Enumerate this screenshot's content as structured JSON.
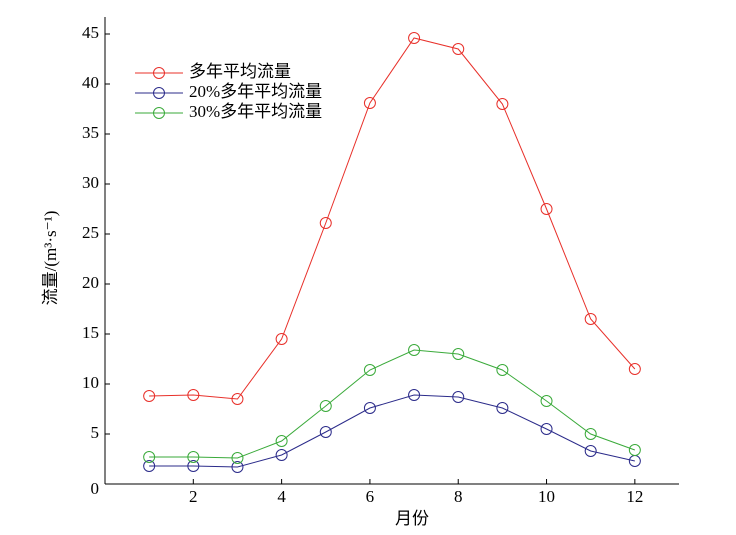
{
  "chart_data": {
    "type": "line",
    "x": [
      1,
      2,
      3,
      4,
      5,
      6,
      7,
      8,
      9,
      10,
      11,
      12
    ],
    "series": [
      {
        "name": "多年平均流量",
        "color": "#e8302a",
        "values": [
          8.8,
          8.9,
          8.5,
          14.5,
          26.1,
          38.1,
          44.6,
          43.5,
          38.0,
          27.5,
          16.5,
          11.5
        ]
      },
      {
        "name": "20%多年平均流量",
        "color": "#2b2b8a",
        "values": [
          1.8,
          1.8,
          1.7,
          2.9,
          5.2,
          7.6,
          8.9,
          8.7,
          7.6,
          5.5,
          3.3,
          2.3
        ]
      },
      {
        "name": "30%多年平均流量",
        "color": "#3aaa3a",
        "values": [
          2.7,
          2.7,
          2.6,
          4.3,
          7.8,
          11.4,
          13.4,
          13.0,
          11.4,
          8.3,
          5.0,
          3.4
        ]
      }
    ],
    "xlabel": "月份",
    "ylabel": "流量/(m³·s⁻¹)",
    "xlim": [
      0,
      13
    ],
    "xticks": [
      2,
      4,
      6,
      8,
      10,
      12
    ],
    "ylim": [
      0,
      46.7
    ],
    "yticks": [
      0,
      5,
      10,
      15,
      20,
      25,
      30,
      35,
      40,
      45
    ],
    "legend": "upper left",
    "grid": false
  }
}
